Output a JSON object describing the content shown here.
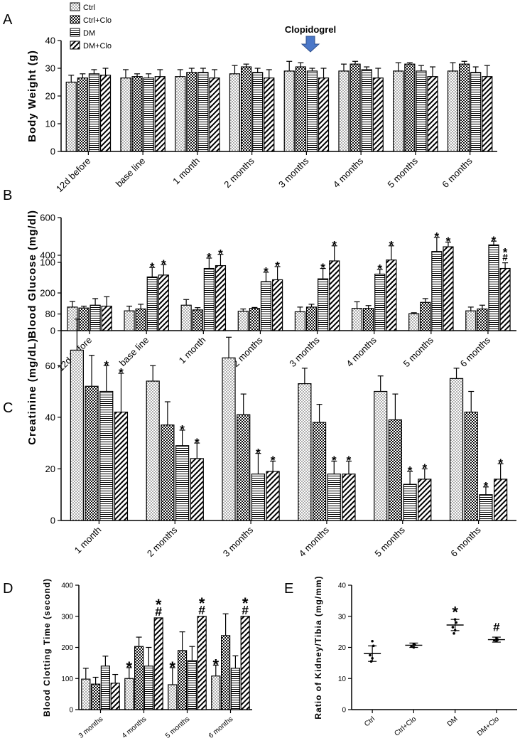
{
  "legend": {
    "items": [
      {
        "label": "Ctrl",
        "pattern": "dots"
      },
      {
        "label": "Ctrl+Clo",
        "pattern": "checker"
      },
      {
        "label": "DM",
        "pattern": "hlines"
      },
      {
        "label": "DM+Clo",
        "pattern": "diag"
      }
    ]
  },
  "annotation": {
    "label": "Clopidogrel",
    "arrow_color": "#4a77c8"
  },
  "chart_data": [
    {
      "panel": "A",
      "type": "bar",
      "ylabel": "Body Weight (g)",
      "ylim": [
        0,
        40
      ],
      "yticks": [
        0,
        10,
        20,
        30,
        40
      ],
      "categories": [
        "12d before",
        "base line",
        "1 month",
        "2 months",
        "3 months",
        "4 months",
        "5 months",
        "6 months"
      ],
      "series": [
        {
          "name": "Ctrl",
          "values": [
            25,
            26.5,
            27,
            28,
            29,
            29,
            29,
            29
          ],
          "errors": [
            2.5,
            3,
            2.5,
            3,
            3.5,
            2.5,
            3,
            3
          ]
        },
        {
          "name": "Ctrl+Clo",
          "values": [
            26.5,
            27,
            28.5,
            30.5,
            30.5,
            31.5,
            31.5,
            31.5
          ],
          "errors": [
            1.5,
            1,
            1.5,
            1,
            1.5,
            1,
            0.5,
            1
          ]
        },
        {
          "name": "DM",
          "values": [
            28,
            26.5,
            28.5,
            28.5,
            29,
            29.5,
            29,
            28.5
          ],
          "errors": [
            1.5,
            1.5,
            1.5,
            1.5,
            1,
            1,
            2,
            2
          ]
        },
        {
          "name": "DM+Clo",
          "values": [
            27.5,
            27,
            26.5,
            26.5,
            26.5,
            26.5,
            27,
            27
          ],
          "errors": [
            2.5,
            2.5,
            3,
            3,
            3.5,
            3.5,
            3.5,
            4
          ]
        }
      ]
    },
    {
      "panel": "B",
      "type": "bar",
      "ylabel": "Blood Glucose (mg/dl)",
      "ylim": [
        0,
        600
      ],
      "yticks": [
        0,
        200,
        400,
        600
      ],
      "categories": [
        "12d before",
        "base line",
        "1 month",
        "2 months",
        "3 months",
        "4 months",
        "5 months",
        "6 months"
      ],
      "series": [
        {
          "name": "Ctrl",
          "values": [
            125,
            105,
            135,
            103,
            100,
            118,
            90,
            105
          ],
          "errors": [
            30,
            25,
            30,
            12,
            25,
            35,
            5,
            20
          ]
        },
        {
          "name": "Ctrl+Clo",
          "values": [
            120,
            115,
            110,
            118,
            125,
            118,
            150,
            115
          ],
          "errors": [
            10,
            25,
            12,
            5,
            15,
            15,
            20,
            20
          ]
        },
        {
          "name": "DM",
          "values": [
            135,
            285,
            330,
            260,
            275,
            300,
            420,
            455
          ],
          "errors": [
            35,
            50,
            55,
            50,
            55,
            25,
            75,
            20
          ]
        },
        {
          "name": "DM+Clo",
          "values": [
            130,
            295,
            345,
            270,
            370,
            375,
            445,
            330
          ],
          "errors": [
            50,
            55,
            60,
            70,
            80,
            75,
            25,
            30
          ]
        }
      ],
      "marks": [
        {
          "category": 1,
          "series": 2,
          "text": "*"
        },
        {
          "category": 1,
          "series": 3,
          "text": "*"
        },
        {
          "category": 2,
          "series": 2,
          "text": "*"
        },
        {
          "category": 2,
          "series": 3,
          "text": "*"
        },
        {
          "category": 3,
          "series": 2,
          "text": "*"
        },
        {
          "category": 3,
          "series": 3,
          "text": "*"
        },
        {
          "category": 4,
          "series": 2,
          "text": "*"
        },
        {
          "category": 4,
          "series": 3,
          "text": "*"
        },
        {
          "category": 5,
          "series": 2,
          "text": "*"
        },
        {
          "category": 5,
          "series": 3,
          "text": "*"
        },
        {
          "category": 6,
          "series": 2,
          "text": "*"
        },
        {
          "category": 6,
          "series": 3,
          "text": "*"
        },
        {
          "category": 7,
          "series": 2,
          "text": "*"
        },
        {
          "category": 7,
          "series": 3,
          "text": "*"
        },
        {
          "category": 7,
          "series": 3,
          "text": "#"
        }
      ]
    },
    {
      "panel": "C",
      "type": "bar",
      "ylabel": "Creatinine (mg/dL)",
      "ylim": [
        0,
        100
      ],
      "yticks": [
        0,
        20,
        40,
        60,
        80,
        100
      ],
      "categories": [
        "1 month",
        "2 months",
        "3 months",
        "4 months",
        "5 months",
        "6 months"
      ],
      "series": [
        {
          "name": "Ctrl",
          "values": [
            66,
            54,
            63,
            53,
            50,
            55
          ],
          "errors": [
            12,
            6,
            8,
            6,
            6,
            4
          ]
        },
        {
          "name": "Ctrl+Clo",
          "values": [
            52,
            37,
            41,
            38,
            39,
            42
          ],
          "errors": [
            12,
            9,
            8,
            7,
            10,
            8
          ]
        },
        {
          "name": "DM",
          "values": [
            50,
            29,
            18,
            18,
            14,
            10
          ],
          "errors": [
            10,
            6,
            8,
            5,
            5,
            3
          ]
        },
        {
          "name": "DM+Clo",
          "values": [
            42,
            24,
            19,
            18,
            16,
            16
          ],
          "errors": [
            15,
            6,
            4,
            5,
            4,
            6
          ]
        }
      ],
      "marks": [
        {
          "category": 0,
          "series": 2,
          "text": "*"
        },
        {
          "category": 0,
          "series": 3,
          "text": "*"
        },
        {
          "category": 1,
          "series": 2,
          "text": "*"
        },
        {
          "category": 1,
          "series": 3,
          "text": "*"
        },
        {
          "category": 2,
          "series": 2,
          "text": "*"
        },
        {
          "category": 2,
          "series": 3,
          "text": "*"
        },
        {
          "category": 3,
          "series": 2,
          "text": "*"
        },
        {
          "category": 3,
          "series": 3,
          "text": "*"
        },
        {
          "category": 4,
          "series": 2,
          "text": "*"
        },
        {
          "category": 4,
          "series": 3,
          "text": "*"
        },
        {
          "category": 5,
          "series": 2,
          "text": "*"
        },
        {
          "category": 5,
          "series": 3,
          "text": "*"
        }
      ]
    },
    {
      "panel": "D",
      "type": "bar",
      "ylabel": "Blood Clotting Time (second)",
      "ylim": [
        0,
        400
      ],
      "yticks": [
        0,
        100,
        200,
        300,
        400
      ],
      "categories": [
        "3 months",
        "4 months",
        "5 months",
        "6 months"
      ],
      "series": [
        {
          "name": "Ctrl",
          "values": [
            98,
            100,
            80,
            108
          ],
          "errors": [
            35,
            35,
            55,
            35
          ]
        },
        {
          "name": "Ctrl+Clo",
          "values": [
            82,
            203,
            190,
            238
          ],
          "errors": [
            22,
            30,
            60,
            70
          ]
        },
        {
          "name": "DM",
          "values": [
            140,
            140,
            158,
            133
          ],
          "errors": [
            32,
            60,
            45,
            40
          ]
        },
        {
          "name": "DM+Clo",
          "values": [
            85,
            295,
            300,
            300
          ],
          "errors": [
            28,
            0,
            0,
            0
          ]
        }
      ],
      "marks": [
        {
          "category": 1,
          "series": 0,
          "text": "*"
        },
        {
          "category": 1,
          "series": 3,
          "text": "*"
        },
        {
          "category": 1,
          "series": 3,
          "text": "#"
        },
        {
          "category": 2,
          "series": 0,
          "text": "*"
        },
        {
          "category": 2,
          "series": 3,
          "text": "*"
        },
        {
          "category": 2,
          "series": 3,
          "text": "#"
        },
        {
          "category": 3,
          "series": 0,
          "text": "*"
        },
        {
          "category": 3,
          "series": 3,
          "text": "*"
        },
        {
          "category": 3,
          "series": 3,
          "text": "#"
        }
      ]
    },
    {
      "panel": "E",
      "type": "scatter",
      "ylabel": "Ratio of Kidney/Tibia (mg/mm)",
      "ylim": [
        0,
        40
      ],
      "yticks": [
        0,
        10,
        20,
        30,
        40
      ],
      "categories": [
        "Ctrl",
        "Ctrl+Clo",
        "DM",
        "DM+Clo"
      ],
      "points": [
        [
          22,
          20.5,
          17.5,
          16.5,
          15.5
        ],
        [
          21,
          20.8,
          20.3,
          20
        ],
        [
          29,
          28,
          26.5,
          25.5,
          24.5
        ],
        [
          23,
          22.5,
          22.3,
          22
        ]
      ],
      "means": [
        18,
        20.7,
        27.2,
        22.5
      ],
      "errors": [
        2.5,
        0.7,
        1.8,
        0.8
      ],
      "marks": [
        {
          "category": 2,
          "text": "*"
        },
        {
          "category": 3,
          "text": "#"
        }
      ]
    }
  ]
}
